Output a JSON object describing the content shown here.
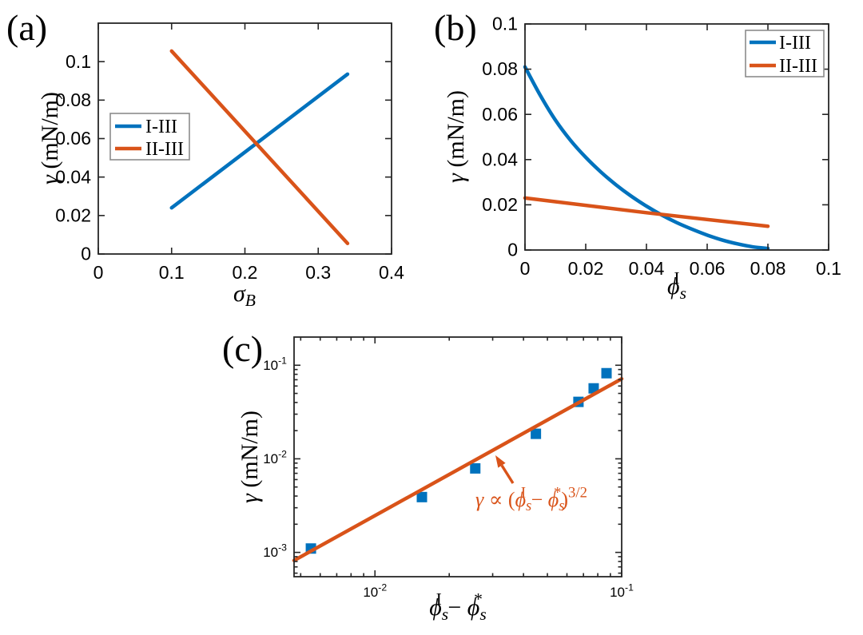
{
  "figure": {
    "background": "#ffffff",
    "panels": [
      {
        "label": "(a)"
      },
      {
        "label": "(b)"
      },
      {
        "label": "(c)"
      }
    ]
  },
  "colors": {
    "blue": "#0072BD",
    "orange": "#D95319",
    "axis": "#262626",
    "text": "#000000",
    "legend_border": "#8c8c8c"
  },
  "chart_data": [
    {
      "id": "a",
      "type": "line",
      "title": "",
      "xlabel": "σ_B",
      "xlabel_tokens": [
        {
          "t": "σ",
          "i": 1
        },
        {
          "t": "B",
          "i": 1,
          "sub": 1
        }
      ],
      "ylabel": "γ (mN/m)",
      "ylabel_tokens": [
        {
          "t": "γ",
          "i": 1
        },
        {
          "t": " (mN/m)"
        }
      ],
      "xscale": "linear",
      "yscale": "linear",
      "xlim": [
        0,
        0.4
      ],
      "ylim": [
        0,
        0.12
      ],
      "xticks": [
        0,
        0.1,
        0.2,
        0.3,
        0.4
      ],
      "xtick_labels": [
        "0",
        "0.1",
        "0.2",
        "0.3",
        "0.4"
      ],
      "yticks": [
        0,
        0.02,
        0.04,
        0.06,
        0.08,
        0.1
      ],
      "ytick_labels": [
        "0",
        "0.02",
        "0.04",
        "0.06",
        "0.08",
        "0.1"
      ],
      "grid": false,
      "legend": {
        "position": "middle-left",
        "entries": [
          "I-III",
          "II-III"
        ]
      },
      "series": [
        {
          "name": "I-III",
          "color": "#0072BD",
          "marker": "none",
          "x": [
            0.1,
            0.34
          ],
          "y": [
            0.024,
            0.0935
          ]
        },
        {
          "name": "II-III",
          "color": "#D95319",
          "marker": "none",
          "x": [
            0.1,
            0.34
          ],
          "y": [
            0.1055,
            0.0055
          ]
        }
      ]
    },
    {
      "id": "b",
      "type": "line",
      "title": "",
      "xlabel": "ϕ_s^I",
      "xlabel_tokens": [
        {
          "t": "ϕ",
          "i": 1
        },
        {
          "t": "s",
          "i": 1,
          "sub": 1
        },
        {
          "t": "I",
          "sup": 1,
          "stack": 1
        }
      ],
      "ylabel": "γ (mN/m)",
      "ylabel_tokens": [
        {
          "t": "γ",
          "i": 1
        },
        {
          "t": " (mN/m)"
        }
      ],
      "xscale": "linear",
      "yscale": "linear",
      "xlim": [
        0,
        0.1
      ],
      "ylim": [
        0,
        0.1
      ],
      "xticks": [
        0,
        0.02,
        0.04,
        0.06,
        0.08,
        0.1
      ],
      "xtick_labels": [
        "0",
        "0.02",
        "0.04",
        "0.06",
        "0.08",
        "0.1"
      ],
      "yticks": [
        0,
        0.02,
        0.04,
        0.06,
        0.08,
        0.1
      ],
      "ytick_labels": [
        "0",
        "0.02",
        "0.04",
        "0.06",
        "0.08",
        "0.1"
      ],
      "grid": false,
      "legend": {
        "position": "top-right",
        "entries": [
          "I-III",
          "II-III"
        ]
      },
      "series": [
        {
          "name": "I-III",
          "color": "#0072BD",
          "marker": "none",
          "smooth": true,
          "x": [
            0,
            0.005,
            0.01,
            0.015,
            0.02,
            0.025,
            0.03,
            0.035,
            0.04,
            0.045,
            0.05,
            0.055,
            0.06,
            0.065,
            0.07,
            0.075,
            0.08
          ],
          "y": [
            0.081,
            0.0685,
            0.0575,
            0.0485,
            0.041,
            0.0345,
            0.0288,
            0.0238,
            0.0194,
            0.0155,
            0.0121,
            0.0092,
            0.0066,
            0.0044,
            0.0027,
            0.0014,
            0.0007
          ]
        },
        {
          "name": "II-III",
          "color": "#D95319",
          "marker": "none",
          "x": [
            0,
            0.04,
            0.08
          ],
          "y": [
            0.023,
            0.0165,
            0.0105
          ]
        }
      ]
    },
    {
      "id": "c",
      "type": "scatter+line",
      "title": "",
      "xlabel": "ϕ_s^I − ϕ_s^*",
      "xlabel_tokens": [
        {
          "t": "ϕ",
          "i": 1
        },
        {
          "t": "s",
          "i": 1,
          "sub": 1
        },
        {
          "t": "I",
          "sup": 1,
          "stack": 1
        },
        {
          "t": " − "
        },
        {
          "t": "ϕ",
          "i": 1
        },
        {
          "t": "s",
          "i": 1,
          "sub": 1
        },
        {
          "t": "*",
          "sup": 1,
          "stack": 1
        }
      ],
      "ylabel": "γ (mN/m)",
      "ylabel_tokens": [
        {
          "t": "γ",
          "i": 1
        },
        {
          "t": " (mN/m)"
        }
      ],
      "xscale": "log",
      "yscale": "log",
      "xlim": [
        0.0047,
        0.1
      ],
      "ylim": [
        0.00055,
        0.2
      ],
      "xticks": [
        0.01,
        0.1
      ],
      "xtick_labels": [
        "10^-2",
        "10^-1"
      ],
      "yticks": [
        0.001,
        0.01,
        0.1
      ],
      "ytick_labels": [
        "10^-3",
        "10^-2",
        "10^-1"
      ],
      "grid": false,
      "legend": null,
      "series": [
        {
          "name": "data",
          "color": "#0072BD",
          "marker": "square",
          "line": false,
          "x": [
            0.0055,
            0.0155,
            0.0255,
            0.0449,
            0.0668,
            0.077,
            0.0868
          ],
          "y": [
            0.0011,
            0.0039,
            0.0079,
            0.0185,
            0.0406,
            0.0566,
            0.0822
          ]
        },
        {
          "name": "power-law fit",
          "color": "#D95319",
          "marker": "none",
          "x": [
            0.0047,
            0.1
          ],
          "y": [
            0.00082,
            0.0716
          ]
        }
      ],
      "annotation": {
        "text": "γ ∝ (ϕ_s^I − ϕ_s^*)^3/2",
        "tokens": [
          {
            "t": "γ",
            "i": 1
          },
          {
            "t": " ∝ ("
          },
          {
            "t": "ϕ",
            "i": 1
          },
          {
            "t": "s",
            "i": 1,
            "sub": 1
          },
          {
            "t": "I",
            "sup": 1,
            "stack": 1
          },
          {
            "t": " − "
          },
          {
            "t": "ϕ",
            "i": 1
          },
          {
            "t": "s",
            "i": 1,
            "sub": 1
          },
          {
            "t": "*",
            "sup": 1,
            "stack": 1
          },
          {
            "t": ")"
          },
          {
            "t": "3/2",
            "sup": 1
          }
        ],
        "color": "#D95319"
      }
    }
  ]
}
